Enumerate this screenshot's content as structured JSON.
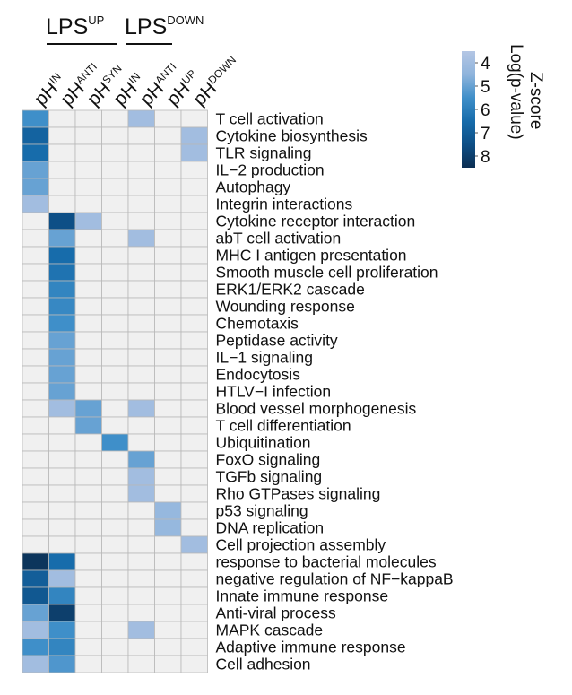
{
  "chart_data": {
    "type": "heatmap",
    "groups": [
      {
        "base": "LPS",
        "sup": "UP"
      },
      {
        "base": "LPS",
        "sup": "DOWN"
      }
    ],
    "columns": [
      {
        "base": "pH",
        "sup": "IN"
      },
      {
        "base": "pH",
        "sup": "ANTI"
      },
      {
        "base": "pH",
        "sup": "SYN"
      },
      {
        "base": "pH",
        "sup": "IN"
      },
      {
        "base": "pH",
        "sup": "ANTI"
      },
      {
        "base": "pH",
        "sup": "UP"
      },
      {
        "base": "pH",
        "sup": "DOWN"
      }
    ],
    "rows": [
      "T cell activation",
      "Cytokine biosynthesis",
      "TLR signaling",
      "IL−2 production",
      "Autophagy",
      "Integrin interactions",
      "Cytokine receptor interaction",
      "abT cell activation",
      "MHC I antigen presentation",
      "Smooth muscle cell proliferation",
      "ERK1/ERK2 cascade",
      "Wounding response",
      "Chemotaxis",
      "Peptidase activity",
      "IL−1 signaling",
      "Endocytosis",
      "HTLV−I infection",
      "Blood vessel morphogenesis",
      "T cell differentiation",
      "Ubiquitination",
      "FoxO signaling",
      "TGFb signaling",
      "Rho GTPases signaling",
      "p53 signaling",
      "DNA replication",
      "Cell projection assembly",
      "response to bacterial molecules",
      "negative regulation of NF−kappaB",
      "Innate immune response",
      "Anti-viral process",
      "MAPK cascade",
      "Adaptive immune response",
      "Cell adhesion"
    ],
    "values": [
      [
        5.5,
        0,
        0,
        0,
        4,
        0,
        0
      ],
      [
        6.8,
        0,
        0,
        0,
        0,
        0,
        4
      ],
      [
        6.5,
        0,
        0,
        0,
        0,
        0,
        4
      ],
      [
        5,
        0,
        0,
        0,
        0,
        0,
        0
      ],
      [
        5,
        0,
        0,
        0,
        0,
        0,
        0
      ],
      [
        4,
        0,
        0,
        0,
        0,
        0,
        0
      ],
      [
        0,
        7.5,
        4,
        0,
        0,
        0,
        0
      ],
      [
        0,
        5,
        0,
        0,
        4,
        0,
        0
      ],
      [
        0,
        6.5,
        0,
        0,
        0,
        0,
        0
      ],
      [
        0,
        6.3,
        0,
        0,
        0,
        0,
        0
      ],
      [
        0,
        5.8,
        0,
        0,
        0,
        0,
        0
      ],
      [
        0,
        5.7,
        0,
        0,
        0,
        0,
        0
      ],
      [
        0,
        5.5,
        0,
        0,
        0,
        0,
        0
      ],
      [
        0,
        5,
        0,
        0,
        0,
        0,
        0
      ],
      [
        0,
        5,
        0,
        0,
        0,
        0,
        0
      ],
      [
        0,
        5,
        0,
        0,
        0,
        0,
        0
      ],
      [
        0,
        5,
        0,
        0,
        0,
        0,
        0
      ],
      [
        0,
        4,
        5,
        0,
        4,
        0,
        0
      ],
      [
        0,
        0,
        5,
        0,
        0,
        0,
        0
      ],
      [
        0,
        0,
        0,
        5.5,
        0,
        0,
        0
      ],
      [
        0,
        0,
        0,
        0,
        5,
        0,
        0
      ],
      [
        0,
        0,
        0,
        0,
        4,
        0,
        0
      ],
      [
        0,
        0,
        0,
        0,
        4,
        0,
        0
      ],
      [
        0,
        0,
        0,
        0,
        0,
        4.3,
        0
      ],
      [
        0,
        0,
        0,
        0,
        0,
        4.3,
        0
      ],
      [
        0,
        0,
        0,
        0,
        0,
        0,
        4
      ],
      [
        8.3,
        6.5,
        0,
        0,
        0,
        0,
        0
      ],
      [
        7,
        4,
        0,
        0,
        0,
        0,
        0
      ],
      [
        7.2,
        5.8,
        0,
        0,
        0,
        0,
        0
      ],
      [
        5,
        8,
        0,
        0,
        0,
        0,
        0
      ],
      [
        4,
        5.5,
        0,
        0,
        4,
        0,
        0
      ],
      [
        5.5,
        5.8,
        0,
        0,
        0,
        0,
        0
      ],
      [
        4,
        5.3,
        0,
        0,
        0,
        0,
        0
      ]
    ],
    "legend": {
      "title": "Z-score",
      "subtitle": "Log(p-value)",
      "ticks": [
        4,
        5,
        6,
        7,
        8
      ],
      "range": [
        3.5,
        8.5
      ],
      "colors": [
        "#b4c6e4",
        "#8fb4dc",
        "#3f8fc9",
        "#176cab",
        "#0e4f86",
        "#0b2e52"
      ]
    },
    "empty_color": "#f0f0f0",
    "grid_color": "#b8b8b8"
  }
}
